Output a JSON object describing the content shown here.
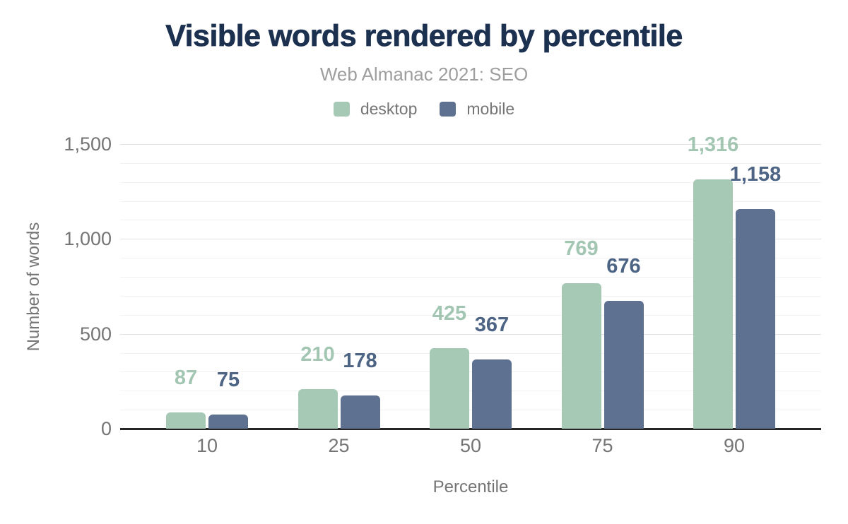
{
  "header": {
    "title": "Visible words rendered by percentile",
    "subtitle": "Web Almanac 2021: SEO"
  },
  "colors": {
    "background": "#ffffff",
    "title": "#1c3050",
    "subtitle": "#9e9e9e",
    "axis_text": "#757575",
    "gridline_minor": "#f2f2f2",
    "gridline_major": "#e0e0e0",
    "axis_line": "#262626",
    "desktop": "#a6c9b6",
    "mobile": "#5f7190",
    "desktop_value_label": "#a2c6b2",
    "mobile_value_label": "#4d6484"
  },
  "chart_data": {
    "type": "bar",
    "title": "Visible words rendered by percentile",
    "subtitle": "Web Almanac 2021: SEO",
    "xlabel": "Percentile",
    "ylabel": "Number of words",
    "categories": [
      "10",
      "25",
      "50",
      "75",
      "90"
    ],
    "series": [
      {
        "name": "desktop",
        "values": [
          87,
          210,
          425,
          769,
          1316
        ],
        "labels": [
          "87",
          "210",
          "425",
          "769",
          "1,316"
        ],
        "color": "#a6c9b6",
        "label_color": "#a2c6b2"
      },
      {
        "name": "mobile",
        "values": [
          75,
          178,
          367,
          676,
          1158
        ],
        "labels": [
          "75",
          "178",
          "367",
          "676",
          "1,158"
        ],
        "color": "#5f7190",
        "label_color": "#4d6484"
      }
    ],
    "ylim": [
      0,
      1500
    ],
    "y_ticks": [
      {
        "value": 0,
        "label": "0"
      },
      {
        "value": 500,
        "label": "500"
      },
      {
        "value": 1000,
        "label": "1,000"
      },
      {
        "value": 1500,
        "label": "1,500"
      }
    ],
    "y_minor_step": 100,
    "grid": true,
    "legend_position": "top"
  }
}
